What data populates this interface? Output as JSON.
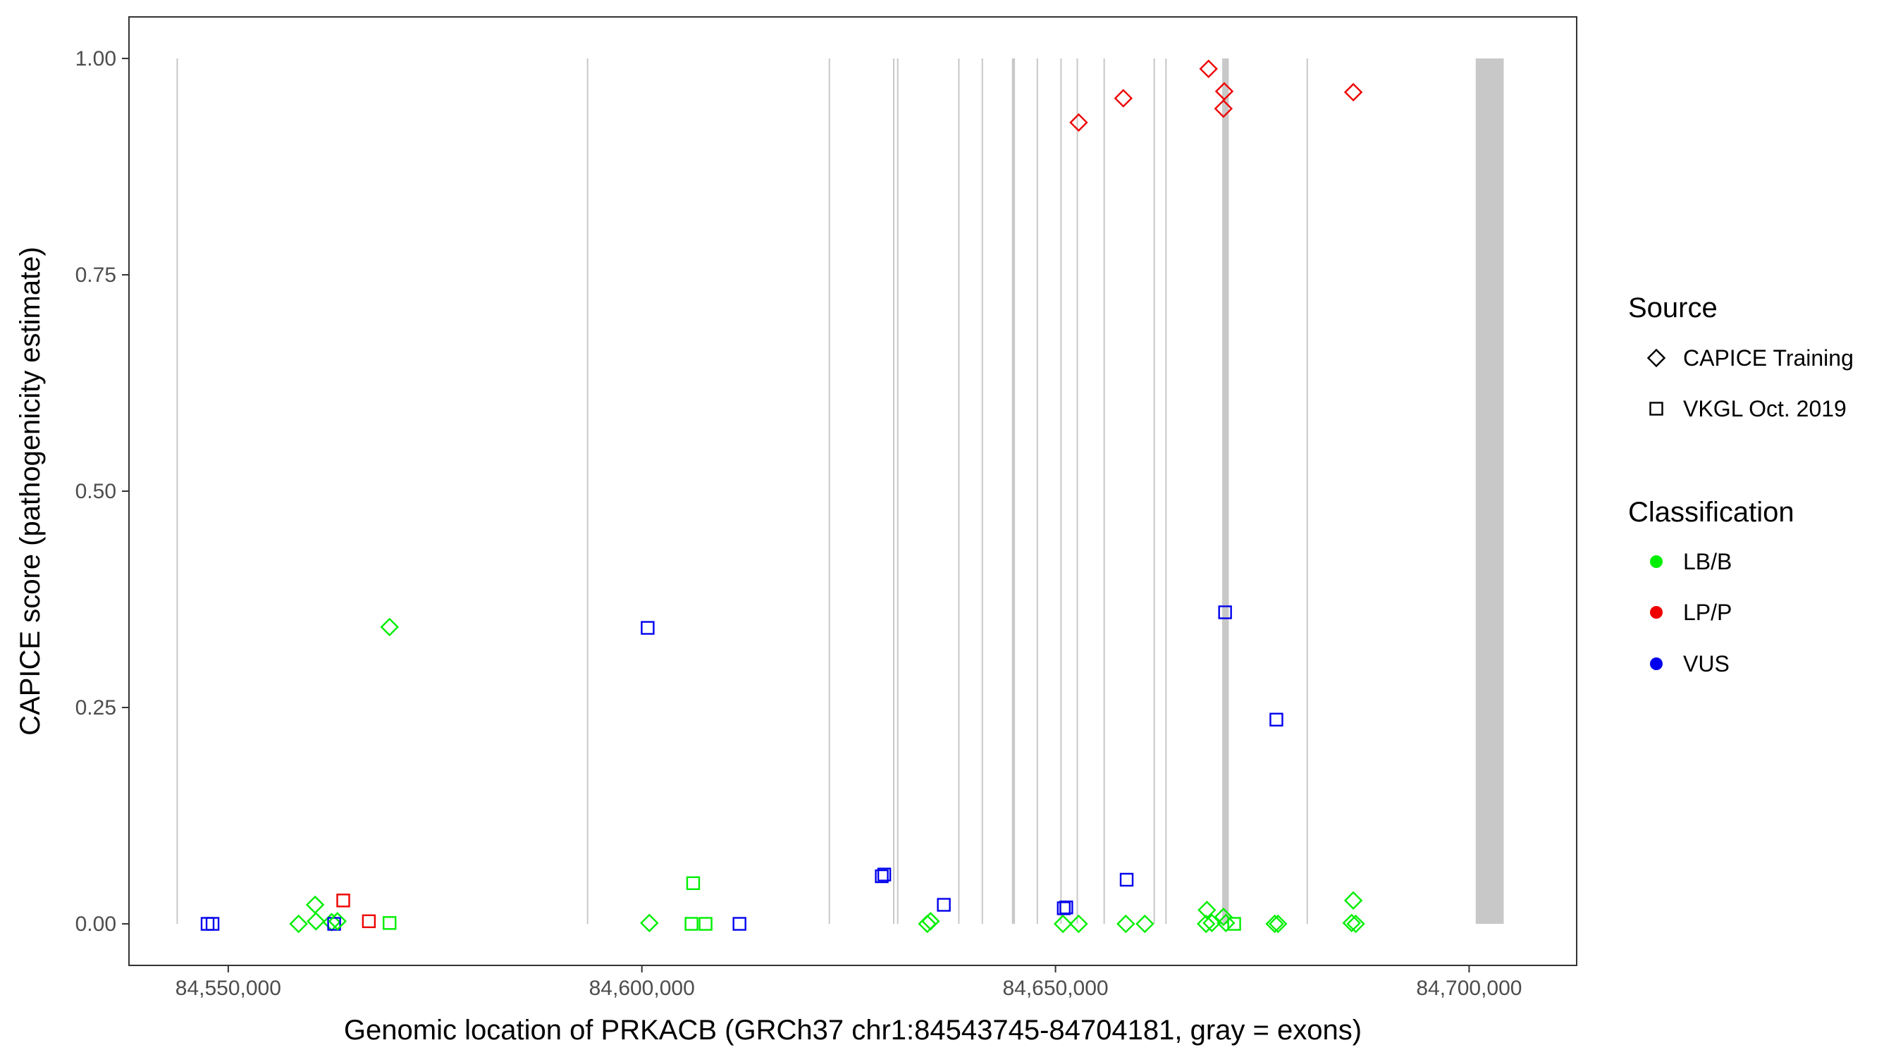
{
  "chart_data": {
    "type": "scatter",
    "title": "",
    "xlabel": "Genomic location of PRKACB (GRCh37 chr1:84543745-84704181, gray = exons)",
    "ylabel": "CAPICE score (pathogenicity estimate)",
    "xlim": [
      84538000,
      84713000
    ],
    "ylim": [
      -0.048,
      1.048
    ],
    "x_ticks": [
      84550000,
      84600000,
      84650000,
      84700000
    ],
    "x_tick_labels": [
      "84,550,000",
      "84,600,000",
      "84,650,000",
      "84,700,000"
    ],
    "y_ticks": [
      0.0,
      0.25,
      0.5,
      0.75,
      1.0
    ],
    "y_tick_labels": [
      "0.00",
      "0.25",
      "0.50",
      "0.75",
      "1.00"
    ],
    "grid": false,
    "exon_color": "#c8c8c8",
    "exons": [
      [
        84543745,
        84543885
      ],
      [
        84593350,
        84593490
      ],
      [
        84622580,
        84622670
      ],
      [
        84630360,
        84630520
      ],
      [
        84630840,
        84630990
      ],
      [
        84638230,
        84638310
      ],
      [
        84641070,
        84641200
      ],
      [
        84644730,
        84645100
      ],
      [
        84647720,
        84647820
      ],
      [
        84650580,
        84650700
      ],
      [
        84652550,
        84652640
      ],
      [
        84655800,
        84655900
      ],
      [
        84661850,
        84661950
      ],
      [
        84663270,
        84663370
      ],
      [
        84670150,
        84670950
      ],
      [
        84680350,
        84680450
      ],
      [
        84700800,
        84704181
      ]
    ],
    "sources": [
      {
        "name": "CAPICE Training",
        "shape": "diamond"
      },
      {
        "name": "VKGL Oct. 2019",
        "shape": "square"
      }
    ],
    "classifications": [
      {
        "name": "LB/B",
        "color": "#00ee00"
      },
      {
        "name": "LP/P",
        "color": "#ee0000"
      },
      {
        "name": "VUS",
        "color": "#0000ee"
      }
    ],
    "legend_position": "right",
    "source_legend_title": "Source",
    "classification_legend_title": "Classification",
    "points": [
      {
        "x": 84547500,
        "y": 0.0,
        "source": "VKGL Oct. 2019",
        "class": "VUS"
      },
      {
        "x": 84548100,
        "y": 0.0,
        "source": "VKGL Oct. 2019",
        "class": "VUS"
      },
      {
        "x": 84558500,
        "y": 0.0,
        "source": "CAPICE Training",
        "class": "LB/B"
      },
      {
        "x": 84560500,
        "y": 0.022,
        "source": "CAPICE Training",
        "class": "LB/B"
      },
      {
        "x": 84560600,
        "y": 0.003,
        "source": "CAPICE Training",
        "class": "LB/B"
      },
      {
        "x": 84562500,
        "y": 0.002,
        "source": "CAPICE Training",
        "class": "LB/B"
      },
      {
        "x": 84562800,
        "y": 0.0,
        "source": "VKGL Oct. 2019",
        "class": "VUS"
      },
      {
        "x": 84563200,
        "y": 0.003,
        "source": "CAPICE Training",
        "class": "LB/B"
      },
      {
        "x": 84563900,
        "y": 0.027,
        "source": "VKGL Oct. 2019",
        "class": "LP/P"
      },
      {
        "x": 84567000,
        "y": 0.003,
        "source": "VKGL Oct. 2019",
        "class": "LP/P"
      },
      {
        "x": 84569500,
        "y": 0.001,
        "source": "VKGL Oct. 2019",
        "class": "LB/B"
      },
      {
        "x": 84569500,
        "y": 0.343,
        "source": "CAPICE Training",
        "class": "LB/B"
      },
      {
        "x": 84600700,
        "y": 0.342,
        "source": "VKGL Oct. 2019",
        "class": "VUS"
      },
      {
        "x": 84600900,
        "y": 0.001,
        "source": "CAPICE Training",
        "class": "LB/B"
      },
      {
        "x": 84606200,
        "y": 0.047,
        "source": "VKGL Oct. 2019",
        "class": "LB/B"
      },
      {
        "x": 84606000,
        "y": 0.0,
        "source": "VKGL Oct. 2019",
        "class": "LB/B"
      },
      {
        "x": 84607700,
        "y": 0.0,
        "source": "VKGL Oct. 2019",
        "class": "LB/B"
      },
      {
        "x": 84611800,
        "y": 0.0,
        "source": "VKGL Oct. 2019",
        "class": "VUS"
      },
      {
        "x": 84629000,
        "y": 0.055,
        "source": "VKGL Oct. 2019",
        "class": "VUS"
      },
      {
        "x": 84629300,
        "y": 0.057,
        "source": "VKGL Oct. 2019",
        "class": "VUS"
      },
      {
        "x": 84634500,
        "y": 0.0,
        "source": "CAPICE Training",
        "class": "LB/B"
      },
      {
        "x": 84634900,
        "y": 0.003,
        "source": "CAPICE Training",
        "class": "LB/B"
      },
      {
        "x": 84636500,
        "y": 0.022,
        "source": "VKGL Oct. 2019",
        "class": "VUS"
      },
      {
        "x": 84651000,
        "y": 0.018,
        "source": "VKGL Oct. 2019",
        "class": "VUS"
      },
      {
        "x": 84651300,
        "y": 0.019,
        "source": "VKGL Oct. 2019",
        "class": "VUS"
      },
      {
        "x": 84650900,
        "y": 0.0,
        "source": "CAPICE Training",
        "class": "LB/B"
      },
      {
        "x": 84652800,
        "y": 0.0,
        "source": "CAPICE Training",
        "class": "LB/B"
      },
      {
        "x": 84652800,
        "y": 0.926,
        "source": "CAPICE Training",
        "class": "LP/P"
      },
      {
        "x": 84658200,
        "y": 0.954,
        "source": "CAPICE Training",
        "class": "LP/P"
      },
      {
        "x": 84658600,
        "y": 0.051,
        "source": "VKGL Oct. 2019",
        "class": "VUS"
      },
      {
        "x": 84658500,
        "y": 0.0,
        "source": "CAPICE Training",
        "class": "LB/B"
      },
      {
        "x": 84660800,
        "y": 0.0,
        "source": "CAPICE Training",
        "class": "LB/B"
      },
      {
        "x": 84668500,
        "y": 0.988,
        "source": "CAPICE Training",
        "class": "LP/P"
      },
      {
        "x": 84668300,
        "y": 0.016,
        "source": "CAPICE Training",
        "class": "LB/B"
      },
      {
        "x": 84668200,
        "y": 0.0,
        "source": "CAPICE Training",
        "class": "LB/B"
      },
      {
        "x": 84668900,
        "y": 0.001,
        "source": "CAPICE Training",
        "class": "LB/B"
      },
      {
        "x": 84670400,
        "y": 0.962,
        "source": "CAPICE Training",
        "class": "LP/P"
      },
      {
        "x": 84670300,
        "y": 0.942,
        "source": "CAPICE Training",
        "class": "LP/P"
      },
      {
        "x": 84670500,
        "y": 0.36,
        "source": "VKGL Oct. 2019",
        "class": "VUS"
      },
      {
        "x": 84670300,
        "y": 0.008,
        "source": "CAPICE Training",
        "class": "LB/B"
      },
      {
        "x": 84670600,
        "y": 0.001,
        "source": "CAPICE Training",
        "class": "LB/B"
      },
      {
        "x": 84671600,
        "y": 0.0,
        "source": "VKGL Oct. 2019",
        "class": "LB/B"
      },
      {
        "x": 84676700,
        "y": 0.236,
        "source": "VKGL Oct. 2019",
        "class": "VUS"
      },
      {
        "x": 84676500,
        "y": 0.0,
        "source": "CAPICE Training",
        "class": "LB/B"
      },
      {
        "x": 84676900,
        "y": 0.0,
        "source": "CAPICE Training",
        "class": "LB/B"
      },
      {
        "x": 84686000,
        "y": 0.961,
        "source": "CAPICE Training",
        "class": "LP/P"
      },
      {
        "x": 84686000,
        "y": 0.027,
        "source": "CAPICE Training",
        "class": "LB/B"
      },
      {
        "x": 84685800,
        "y": 0.001,
        "source": "CAPICE Training",
        "class": "LB/B"
      },
      {
        "x": 84686300,
        "y": 0.0,
        "source": "CAPICE Training",
        "class": "LB/B"
      }
    ]
  }
}
